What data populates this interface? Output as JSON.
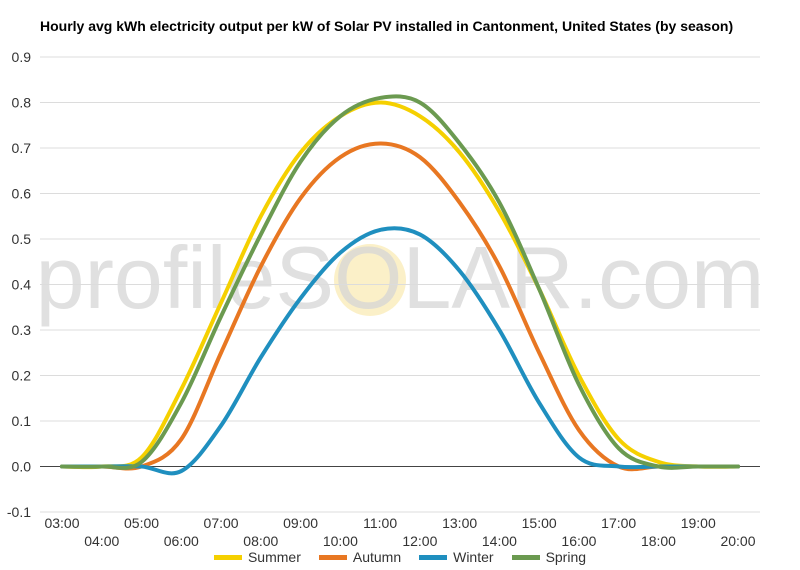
{
  "chart_data": {
    "type": "line",
    "title": "Hourly avg kWh electricity output per kW of Solar PV installed in Cantonment, United States (by season)",
    "watermark": "profileSOLAR.com",
    "xlabel": "",
    "ylabel": "",
    "ylim": [
      -0.1,
      0.9
    ],
    "y_ticks": [
      "-0.1",
      "0.0",
      "0.1",
      "0.2",
      "0.3",
      "0.4",
      "0.5",
      "0.6",
      "0.7",
      "0.8",
      "0.9"
    ],
    "x_ticks_top": [
      "03:00",
      "05:00",
      "07:00",
      "09:00",
      "11:00",
      "13:00",
      "15:00",
      "17:00",
      "19:00"
    ],
    "x_ticks_bottom": [
      "04:00",
      "06:00",
      "08:00",
      "10:00",
      "12:00",
      "14:00",
      "16:00",
      "18:00",
      "20:00"
    ],
    "grid": true,
    "legend_position": "bottom",
    "x": [
      "03:00",
      "04:00",
      "05:00",
      "06:00",
      "07:00",
      "08:00",
      "09:00",
      "10:00",
      "11:00",
      "12:00",
      "13:00",
      "14:00",
      "15:00",
      "16:00",
      "17:00",
      "18:00",
      "19:00",
      "20:00"
    ],
    "series": [
      {
        "name": "Summer",
        "color": "#f5d000",
        "values": [
          0,
          0,
          0.02,
          0.17,
          0.36,
          0.55,
          0.69,
          0.77,
          0.8,
          0.77,
          0.69,
          0.56,
          0.39,
          0.2,
          0.06,
          0.01,
          0,
          0
        ]
      },
      {
        "name": "Autumn",
        "color": "#e87722",
        "values": [
          0,
          0,
          0,
          0.06,
          0.25,
          0.44,
          0.59,
          0.68,
          0.71,
          0.68,
          0.58,
          0.44,
          0.25,
          0.08,
          0,
          0,
          0,
          0
        ]
      },
      {
        "name": "Winter",
        "color": "#1f8fbf",
        "values": [
          0,
          0,
          0,
          -0.01,
          0.09,
          0.24,
          0.37,
          0.47,
          0.52,
          0.51,
          0.43,
          0.3,
          0.14,
          0.02,
          0,
          0,
          0,
          0
        ]
      },
      {
        "name": "Spring",
        "color": "#6b9a50",
        "values": [
          0,
          0,
          0.01,
          0.14,
          0.33,
          0.51,
          0.67,
          0.77,
          0.81,
          0.8,
          0.71,
          0.58,
          0.39,
          0.18,
          0.04,
          0,
          0,
          0
        ]
      }
    ]
  }
}
